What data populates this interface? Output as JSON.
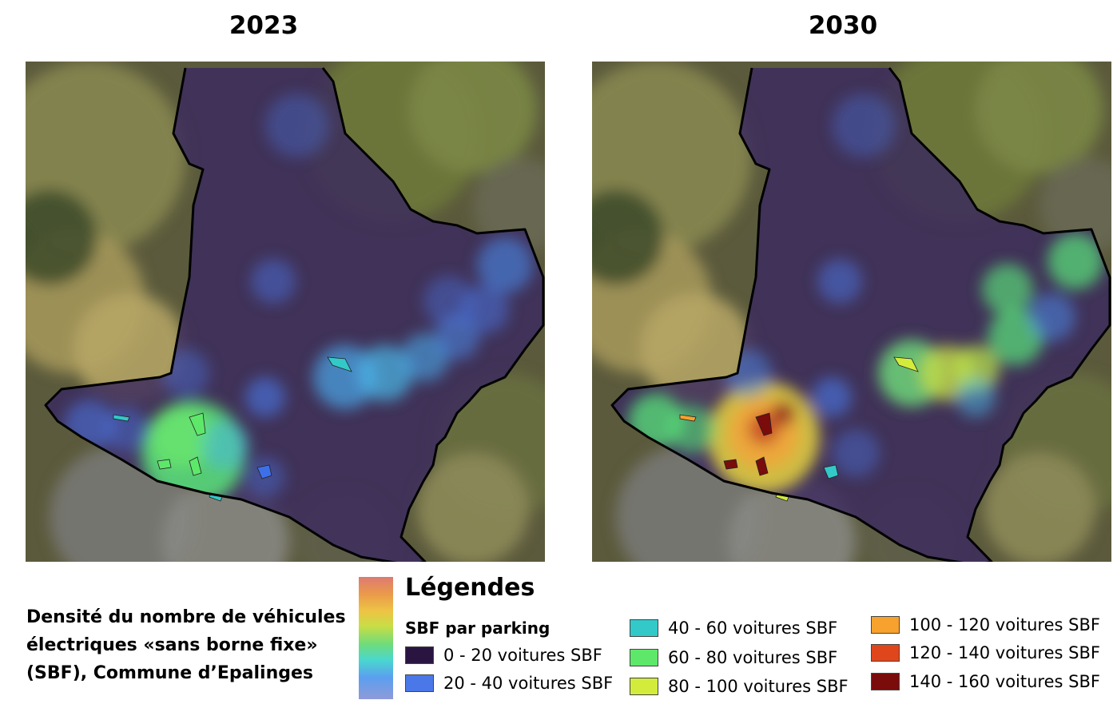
{
  "panels": [
    {
      "year": "2023"
    },
    {
      "year": "2030"
    }
  ],
  "caption": {
    "lines": [
      "Densité du nombre de véhicules",
      "électriques «sans borne fixe»",
      "(SBF), Commune d’Epalinges"
    ]
  },
  "legend": {
    "title": "Légendes",
    "subtitle": "SBF par parking",
    "items": [
      {
        "label": "0 - 20 voitures SBF",
        "color": "#2a1540"
      },
      {
        "label": "20 - 40 voitures SBF",
        "color": "#4a78e8"
      },
      {
        "label": "40 - 60 voitures SBF",
        "color": "#33c9c8"
      },
      {
        "label": "60 - 80 voitures SBF",
        "color": "#5ee86a"
      },
      {
        "label": "80 - 100 voitures SBF",
        "color": "#d3ec3c"
      },
      {
        "label": "100 - 120 voitures SBF",
        "color": "#f7a12e"
      },
      {
        "label": "120 - 140 voitures SBF",
        "color": "#e0461c"
      },
      {
        "label": "140 - 160 voitures SBF",
        "color": "#7a0c0c"
      }
    ],
    "gradient_colors": [
      "#dd7a72",
      "#ea9a4a",
      "#eec445",
      "#c9dd46",
      "#6fdc7a",
      "#4ad7cf",
      "#5a9ff0",
      "#8f9ad8"
    ]
  }
}
